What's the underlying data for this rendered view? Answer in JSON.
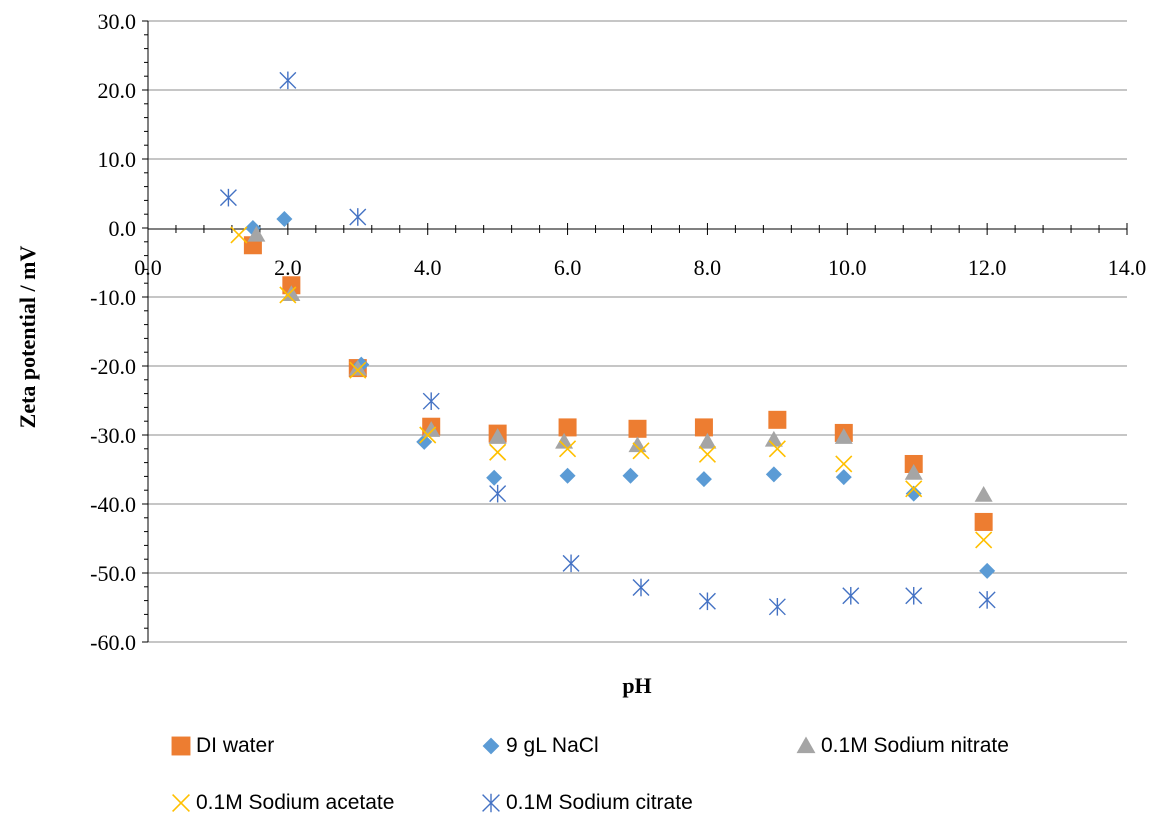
{
  "chart_data": {
    "type": "scatter",
    "title": "",
    "xlabel": "pH",
    "ylabel": "Zeta potential / mV",
    "xlim": [
      0,
      14
    ],
    "ylim": [
      -60,
      30
    ],
    "xticks": [
      "0.0",
      "2.0",
      "4.0",
      "6.0",
      "8.0",
      "10.0",
      "12.0",
      "14.0"
    ],
    "yticks": [
      "30.0",
      "20.0",
      "10.0",
      "0.0",
      "-10.0",
      "-20.0",
      "-30.0",
      "-40.0",
      "-50.0",
      "-60.0"
    ],
    "grid": "horizontal",
    "legend_position": "bottom",
    "series": [
      {
        "name": "DI water",
        "marker": "square",
        "color": "#ED7D31",
        "points": [
          [
            1.5,
            -2.5
          ],
          [
            2.05,
            -8.3
          ],
          [
            3.0,
            -20.3
          ],
          [
            4.05,
            -28.8
          ],
          [
            5.0,
            -29.8
          ],
          [
            6.0,
            -28.9
          ],
          [
            7.0,
            -29.1
          ],
          [
            7.95,
            -28.9
          ],
          [
            9.0,
            -27.8
          ],
          [
            9.95,
            -29.7
          ],
          [
            10.95,
            -34.2
          ],
          [
            11.95,
            -42.6
          ]
        ]
      },
      {
        "name": "9 gL NaCl",
        "marker": "diamond",
        "color": "#5B9BD5",
        "points": [
          [
            1.5,
            0.0
          ],
          [
            1.95,
            1.3
          ],
          [
            3.05,
            -19.8
          ],
          [
            3.95,
            -31.0
          ],
          [
            4.95,
            -36.2
          ],
          [
            6.0,
            -35.9
          ],
          [
            6.9,
            -35.9
          ],
          [
            7.95,
            -36.4
          ],
          [
            8.95,
            -35.7
          ],
          [
            9.95,
            -36.1
          ],
          [
            10.95,
            -38.5
          ],
          [
            12.0,
            -49.7
          ]
        ]
      },
      {
        "name": "0.1M Sodium nitrate",
        "marker": "triangle",
        "color": "#A5A5A5",
        "points": [
          [
            1.55,
            -1.0
          ],
          [
            2.05,
            -9.6
          ],
          [
            3.0,
            -20.4
          ],
          [
            4.05,
            -29.3
          ],
          [
            5.0,
            -30.3
          ],
          [
            5.95,
            -31.0
          ],
          [
            7.0,
            -31.5
          ],
          [
            8.0,
            -31.0
          ],
          [
            8.95,
            -30.7
          ],
          [
            9.95,
            -30.3
          ],
          [
            10.95,
            -35.5
          ],
          [
            11.95,
            -38.7
          ]
        ]
      },
      {
        "name": "0.1M Sodium acetate",
        "marker": "x",
        "color": "#FFC000",
        "points": [
          [
            1.3,
            -1.0
          ],
          [
            2.0,
            -9.7
          ],
          [
            3.0,
            -20.6
          ],
          [
            4.0,
            -30.0
          ],
          [
            5.0,
            -32.5
          ],
          [
            6.0,
            -32.0
          ],
          [
            7.05,
            -32.3
          ],
          [
            8.0,
            -32.8
          ],
          [
            9.0,
            -32.0
          ],
          [
            9.95,
            -34.2
          ],
          [
            10.95,
            -37.8
          ],
          [
            11.95,
            -45.2
          ]
        ]
      },
      {
        "name": "0.1M Sodium citrate",
        "marker": "asterisk",
        "color": "#4472C4",
        "points": [
          [
            1.15,
            4.4
          ],
          [
            2.0,
            21.4
          ],
          [
            3.0,
            1.6
          ],
          [
            4.05,
            -25.1
          ],
          [
            5.0,
            -38.5
          ],
          [
            6.05,
            -48.6
          ],
          [
            7.05,
            -52.1
          ],
          [
            8.0,
            -54.1
          ],
          [
            9.0,
            -54.9
          ],
          [
            10.05,
            -53.3
          ],
          [
            10.95,
            -53.3
          ],
          [
            12.0,
            -53.9
          ]
        ]
      }
    ]
  }
}
